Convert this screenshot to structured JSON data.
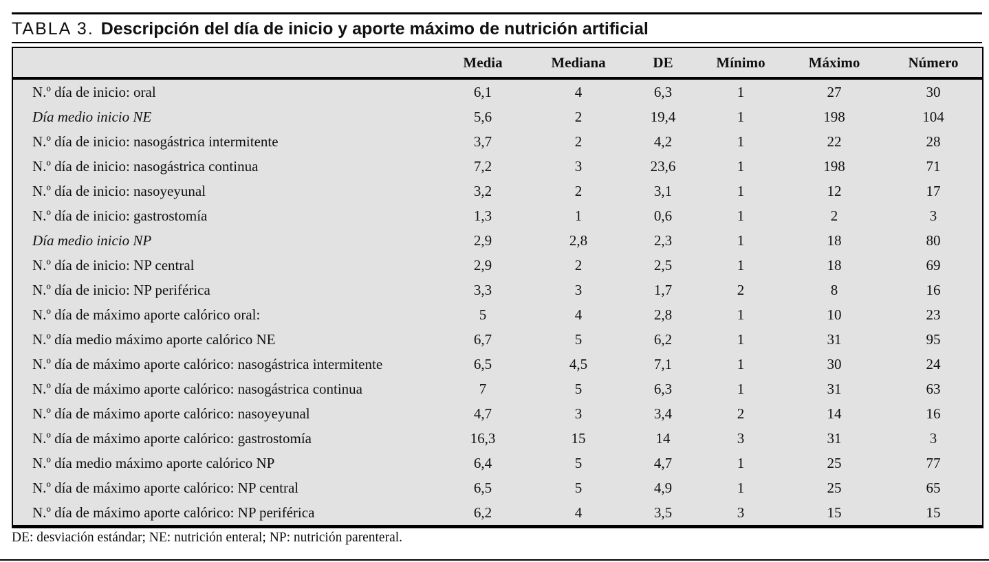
{
  "caption": {
    "label": "TABLA 3.",
    "text": "Descripción del día de inicio y aporte máximo de nutrición artificial"
  },
  "table": {
    "columns": [
      "Media",
      "Mediana",
      "DE",
      "Mínimo",
      "Máximo",
      "Número"
    ],
    "rows": [
      {
        "label": "N.º día de inicio: oral",
        "italic": false,
        "values": [
          "6,1",
          "4",
          "6,3",
          "1",
          "27",
          "30"
        ]
      },
      {
        "label": "Día medio inicio NE",
        "italic": true,
        "values": [
          "5,6",
          "2",
          "19,4",
          "1",
          "198",
          "104"
        ]
      },
      {
        "label": "N.º día de inicio: nasogástrica intermitente",
        "italic": false,
        "values": [
          "3,7",
          "2",
          "4,2",
          "1",
          "22",
          "28"
        ]
      },
      {
        "label": "N.º día de inicio: nasogástrica continua",
        "italic": false,
        "values": [
          "7,2",
          "3",
          "23,6",
          "1",
          "198",
          "71"
        ]
      },
      {
        "label": "N.º día de inicio: nasoyeyunal",
        "italic": false,
        "values": [
          "3,2",
          "2",
          "3,1",
          "1",
          "12",
          "17"
        ]
      },
      {
        "label": "N.º día de inicio: gastrostomía",
        "italic": false,
        "values": [
          "1,3",
          "1",
          "0,6",
          "1",
          "2",
          "3"
        ]
      },
      {
        "label": "Día medio inicio NP",
        "italic": true,
        "values": [
          "2,9",
          "2,8",
          "2,3",
          "1",
          "18",
          "80"
        ]
      },
      {
        "label": "N.º día de inicio: NP central",
        "italic": false,
        "values": [
          "2,9",
          "2",
          "2,5",
          "1",
          "18",
          "69"
        ]
      },
      {
        "label": "N.º día de inicio: NP periférica",
        "italic": false,
        "values": [
          "3,3",
          "3",
          "1,7",
          "2",
          "8",
          "16"
        ]
      },
      {
        "label": "N.º día de máximo aporte calórico oral:",
        "italic": false,
        "values": [
          "5",
          "4",
          "2,8",
          "1",
          "10",
          "23"
        ]
      },
      {
        "label": "N.º día medio máximo aporte calórico NE",
        "italic": false,
        "values": [
          "6,7",
          "5",
          "6,2",
          "1",
          "31",
          "95"
        ]
      },
      {
        "label": "N.º día de máximo aporte calórico: nasogástrica intermitente",
        "italic": false,
        "values": [
          "6,5",
          "4,5",
          "7,1",
          "1",
          "30",
          "24"
        ]
      },
      {
        "label": "N.º día de máximo aporte calórico: nasogástrica continua",
        "italic": false,
        "values": [
          "7",
          "5",
          "6,3",
          "1",
          "31",
          "63"
        ]
      },
      {
        "label": "N.º día de máximo aporte calórico: nasoyeyunal",
        "italic": false,
        "values": [
          "4,7",
          "3",
          "3,4",
          "2",
          "14",
          "16"
        ]
      },
      {
        "label": "N.º día de máximo aporte calórico: gastrostomía",
        "italic": false,
        "values": [
          "16,3",
          "15",
          "14",
          "3",
          "31",
          "3"
        ]
      },
      {
        "label": "N.º día medio máximo aporte calórico NP",
        "italic": false,
        "values": [
          "6,4",
          "5",
          "4,7",
          "1",
          "25",
          "77"
        ]
      },
      {
        "label": "N.º día de máximo aporte calórico: NP central",
        "italic": false,
        "values": [
          "6,5",
          "5",
          "4,9",
          "1",
          "25",
          "65"
        ]
      },
      {
        "label": "N.º día de máximo aporte calórico: NP periférica",
        "italic": false,
        "values": [
          "6,2",
          "4",
          "3,5",
          "3",
          "15",
          "15"
        ]
      }
    ]
  },
  "footnote": "DE: desviación estándar; NE: nutrición enteral; NP: nutrición parenteral.",
  "colors": {
    "table_background": "#e2e2e2",
    "rule": "#000000",
    "text": "#111111",
    "page_background": "#ffffff"
  }
}
